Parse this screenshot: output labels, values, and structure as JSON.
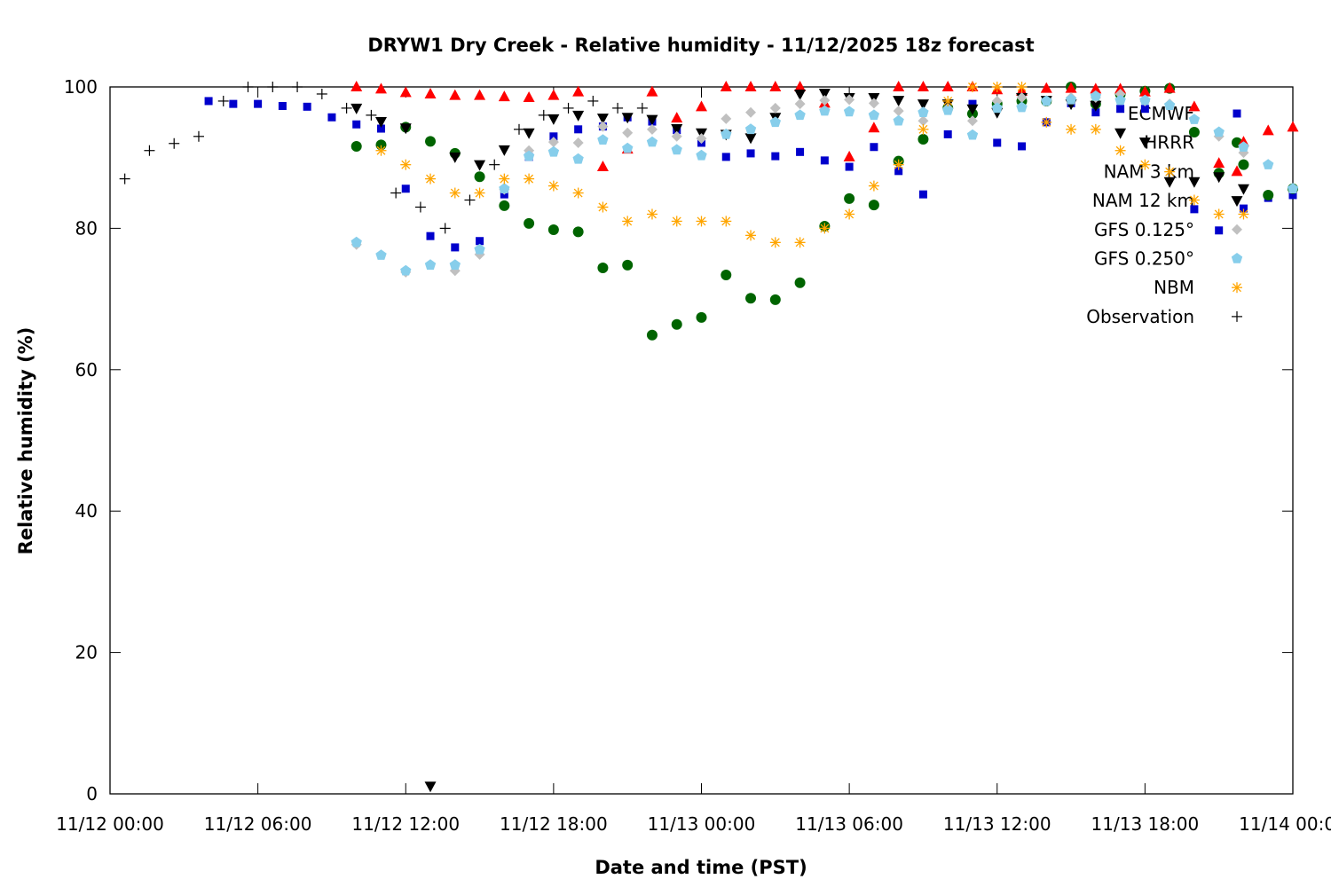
{
  "chart_data": {
    "type": "scatter",
    "title": "DRYW1 Dry Creek - Relative humidity - 11/12/2025 18z forecast",
    "xlabel": "Date and time (PST)",
    "ylabel": "Relative humidity (%)",
    "x_unit": "hours since 11/12 00:00 PST",
    "xlim": [
      0,
      48
    ],
    "ylim": [
      0,
      100
    ],
    "x_ticks": [
      {
        "x": 0,
        "label": "11/12 00:00"
      },
      {
        "x": 6,
        "label": "11/12 06:00"
      },
      {
        "x": 12,
        "label": "11/12 12:00"
      },
      {
        "x": 18,
        "label": "11/12 18:00"
      },
      {
        "x": 24,
        "label": "11/13 00:00"
      },
      {
        "x": 30,
        "label": "11/13 06:00"
      },
      {
        "x": 36,
        "label": "11/13 12:00"
      },
      {
        "x": 42,
        "label": "11/13 18:00"
      },
      {
        "x": 48,
        "label": "11/14 00:00"
      }
    ],
    "y_ticks": [
      {
        "y": 0,
        "label": "0"
      },
      {
        "y": 20,
        "label": "20"
      },
      {
        "y": 40,
        "label": "40"
      },
      {
        "y": 60,
        "label": "60"
      },
      {
        "y": 80,
        "label": "80"
      },
      {
        "y": 100,
        "label": "100"
      }
    ],
    "grid": false,
    "legend_position": "top-right",
    "series": [
      {
        "name": "ECMWF",
        "marker": "square",
        "color": "#0000cc",
        "points": [
          [
            4,
            98
          ],
          [
            5,
            97.6
          ],
          [
            6,
            97.6
          ],
          [
            7,
            97.3
          ],
          [
            8,
            97.2
          ],
          [
            9,
            95.7
          ],
          [
            10,
            94.7
          ],
          [
            11,
            94.1
          ],
          [
            12,
            85.6
          ],
          [
            13,
            78.9
          ],
          [
            14,
            77.3
          ],
          [
            15,
            78.2
          ],
          [
            16,
            84.8
          ],
          [
            17,
            90.1
          ],
          [
            18,
            93
          ],
          [
            19,
            94
          ],
          [
            20,
            94.4
          ],
          [
            21,
            95.7
          ],
          [
            22,
            95.1
          ],
          [
            23,
            93.9
          ],
          [
            24,
            92.1
          ],
          [
            25,
            90.1
          ],
          [
            26,
            90.6
          ],
          [
            27,
            90.2
          ],
          [
            28,
            90.8
          ],
          [
            29,
            89.6
          ],
          [
            30,
            88.7
          ],
          [
            31,
            91.5
          ],
          [
            32,
            88.1
          ],
          [
            33,
            84.8
          ],
          [
            34,
            93.3
          ],
          [
            35,
            97.6
          ],
          [
            36,
            92.1
          ],
          [
            37,
            91.6
          ],
          [
            38,
            95
          ],
          [
            39,
            97.7
          ],
          [
            40,
            96.4
          ],
          [
            41,
            96.9
          ],
          [
            42,
            96.9
          ],
          [
            44,
            82.7
          ],
          [
            45,
            79.7
          ],
          [
            46,
            82.8
          ],
          [
            47,
            84.3
          ],
          [
            48,
            84.7
          ]
        ]
      },
      {
        "name": "HRRR",
        "marker": "circle",
        "color": "#006400",
        "points": [
          [
            10,
            91.6
          ],
          [
            11,
            91.8
          ],
          [
            12,
            94.3
          ],
          [
            13,
            92.3
          ],
          [
            14,
            90.6
          ],
          [
            15,
            87.3
          ],
          [
            16,
            83.2
          ],
          [
            17,
            80.7
          ],
          [
            18,
            79.8
          ],
          [
            19,
            79.5
          ],
          [
            20,
            74.4
          ],
          [
            21,
            74.8
          ],
          [
            22,
            64.9
          ],
          [
            23,
            66.4
          ],
          [
            24,
            67.4
          ],
          [
            25,
            73.4
          ],
          [
            26,
            70.1
          ],
          [
            27,
            69.9
          ],
          [
            28,
            72.3
          ],
          [
            29,
            80.3
          ],
          [
            30,
            84.2
          ],
          [
            31,
            83.3
          ],
          [
            32,
            89.5
          ],
          [
            33,
            92.6
          ],
          [
            34,
            97
          ],
          [
            35,
            96.2
          ],
          [
            36,
            97.6
          ],
          [
            37,
            98
          ],
          [
            38,
            98
          ],
          [
            39,
            100
          ],
          [
            40,
            97.6
          ],
          [
            41,
            99
          ],
          [
            42,
            99.4
          ],
          [
            43,
            99.8
          ],
          [
            44,
            93.6
          ],
          [
            45,
            87.8
          ],
          [
            46,
            89
          ],
          [
            47,
            84.7
          ],
          [
            48,
            85.6
          ]
        ]
      },
      {
        "name": "NAM 3 km",
        "marker": "triangle-up",
        "color": "#ff0000",
        "points": [
          [
            10,
            100
          ],
          [
            11,
            99.7
          ],
          [
            12,
            99.2
          ],
          [
            13,
            99
          ],
          [
            14,
            98.8
          ],
          [
            15,
            98.8
          ],
          [
            16,
            98.6
          ],
          [
            17,
            98.5
          ],
          [
            18,
            98.8
          ],
          [
            19,
            99.3
          ],
          [
            20,
            88.7
          ],
          [
            21,
            91.2
          ],
          [
            22,
            99.3
          ],
          [
            23,
            95.6
          ],
          [
            24,
            97.2
          ],
          [
            25,
            100
          ],
          [
            26,
            100
          ],
          [
            27,
            100
          ],
          [
            28,
            100
          ],
          [
            29,
            97.7
          ],
          [
            30,
            90.1
          ],
          [
            31,
            94.2
          ],
          [
            32,
            100
          ],
          [
            33,
            100
          ],
          [
            34,
            100
          ],
          [
            35,
            100
          ],
          [
            36,
            99.6
          ],
          [
            37,
            99.4
          ],
          [
            38,
            99.8
          ],
          [
            39,
            99.8
          ],
          [
            40,
            99.7
          ],
          [
            41,
            99.7
          ],
          [
            42,
            99.3
          ],
          [
            43,
            99.8
          ],
          [
            44,
            97.2
          ],
          [
            45,
            89.2
          ],
          [
            46,
            92.2
          ],
          [
            47,
            93.8
          ],
          [
            48,
            94.3
          ]
        ]
      },
      {
        "name": "NAM 12 km",
        "marker": "triangle-down",
        "color": "#000000",
        "points": [
          [
            10,
            97
          ],
          [
            11,
            95.1
          ],
          [
            12,
            94.2
          ],
          [
            13,
            1.1
          ],
          [
            14,
            90.1
          ],
          [
            15,
            89
          ],
          [
            16,
            91.1
          ],
          [
            17,
            93.5
          ],
          [
            18,
            95.5
          ],
          [
            19,
            96
          ],
          [
            20,
            95.6
          ],
          [
            21,
            95.7
          ],
          [
            22,
            95.4
          ],
          [
            23,
            94.1
          ],
          [
            24,
            93.5
          ],
          [
            25,
            93.3
          ],
          [
            26,
            92.8
          ],
          [
            27,
            95.7
          ],
          [
            28,
            99
          ],
          [
            29,
            99.1
          ],
          [
            30,
            98.5
          ],
          [
            31,
            98.5
          ],
          [
            32,
            98.1
          ],
          [
            33,
            97.6
          ],
          [
            34,
            97.6
          ],
          [
            35,
            96.9
          ],
          [
            36,
            96.4
          ],
          [
            37,
            98.5
          ],
          [
            38,
            98.1
          ],
          [
            39,
            97.6
          ],
          [
            40,
            97.4
          ],
          [
            41,
            93.5
          ],
          [
            42,
            92.2
          ],
          [
            43,
            86.6
          ],
          [
            44,
            86.6
          ],
          [
            45,
            87.3
          ],
          [
            46,
            85.6
          ]
        ]
      },
      {
        "name": "GFS 0.125°",
        "marker": "diamond",
        "color": "#c0c0c0",
        "points": [
          [
            10,
            77.7
          ],
          [
            12,
            73.8
          ],
          [
            14,
            74
          ],
          [
            15,
            76.3
          ],
          [
            16,
            85.5
          ],
          [
            17,
            91
          ],
          [
            18,
            92.2
          ],
          [
            19,
            92.1
          ],
          [
            20,
            94.4
          ],
          [
            21,
            93.5
          ],
          [
            22,
            94
          ],
          [
            23,
            93
          ],
          [
            24,
            92.7
          ],
          [
            25,
            95.5
          ],
          [
            26,
            96.4
          ],
          [
            27,
            97
          ],
          [
            28,
            97.6
          ],
          [
            29,
            98.1
          ],
          [
            30,
            98.2
          ],
          [
            31,
            97.7
          ],
          [
            32,
            96.6
          ],
          [
            33,
            95.2
          ],
          [
            34,
            97
          ],
          [
            35,
            95.2
          ],
          [
            36,
            98
          ],
          [
            37,
            98.5
          ],
          [
            38,
            98
          ],
          [
            39,
            98.5
          ],
          [
            40,
            98.5
          ],
          [
            41,
            99
          ],
          [
            42,
            98
          ],
          [
            43,
            97.6
          ],
          [
            45,
            93
          ],
          [
            46,
            90.7
          ]
        ]
      },
      {
        "name": "GFS 0.250°",
        "marker": "pentagon",
        "color": "#87ceeb",
        "points": [
          [
            10,
            78
          ],
          [
            11,
            76.2
          ],
          [
            12,
            74
          ],
          [
            13,
            74.8
          ],
          [
            14,
            74.8
          ],
          [
            15,
            77
          ],
          [
            16,
            85.6
          ],
          [
            17,
            90.2
          ],
          [
            18,
            90.8
          ],
          [
            19,
            89.8
          ],
          [
            20,
            92.5
          ],
          [
            21,
            91.3
          ],
          [
            22,
            92.2
          ],
          [
            23,
            91.1
          ],
          [
            24,
            90.3
          ],
          [
            25,
            93.3
          ],
          [
            26,
            94
          ],
          [
            27,
            95
          ],
          [
            28,
            96
          ],
          [
            29,
            96.6
          ],
          [
            30,
            96.5
          ],
          [
            31,
            96
          ],
          [
            32,
            95.2
          ],
          [
            33,
            96.4
          ],
          [
            34,
            96.7
          ],
          [
            35,
            93.2
          ],
          [
            36,
            97
          ],
          [
            37,
            97.1
          ],
          [
            38,
            98
          ],
          [
            39,
            98.2
          ],
          [
            40,
            98.7
          ],
          [
            41,
            98.1
          ],
          [
            42,
            98.1
          ],
          [
            43,
            97.4
          ],
          [
            44,
            95.4
          ],
          [
            45,
            93.6
          ],
          [
            46,
            91.5
          ],
          [
            47,
            89
          ],
          [
            48,
            85.6
          ]
        ]
      },
      {
        "name": "NBM",
        "marker": "star",
        "color": "#ffa500",
        "points": [
          [
            11,
            91
          ],
          [
            12,
            89
          ],
          [
            13,
            87
          ],
          [
            14,
            85
          ],
          [
            15,
            85
          ],
          [
            16,
            87
          ],
          [
            17,
            87
          ],
          [
            18,
            86
          ],
          [
            19,
            85
          ],
          [
            20,
            83
          ],
          [
            21,
            81
          ],
          [
            22,
            82
          ],
          [
            23,
            81
          ],
          [
            24,
            81
          ],
          [
            25,
            81
          ],
          [
            26,
            79
          ],
          [
            27,
            78
          ],
          [
            28,
            78
          ],
          [
            29,
            80
          ],
          [
            30,
            82
          ],
          [
            31,
            86
          ],
          [
            32,
            89
          ],
          [
            33,
            94
          ],
          [
            34,
            98
          ],
          [
            35,
            100
          ],
          [
            36,
            100
          ],
          [
            37,
            100
          ],
          [
            38,
            95
          ],
          [
            39,
            94
          ],
          [
            40,
            94
          ],
          [
            41,
            91
          ],
          [
            42,
            89
          ],
          [
            43,
            88
          ],
          [
            44,
            84
          ],
          [
            45,
            82
          ],
          [
            46,
            82
          ]
        ]
      },
      {
        "name": "Observation",
        "marker": "plus",
        "color": "#000000",
        "points": [
          [
            0.6,
            87
          ],
          [
            1.6,
            91
          ],
          [
            2.6,
            92
          ],
          [
            3.6,
            93
          ],
          [
            4.6,
            98
          ],
          [
            5.6,
            100
          ],
          [
            6.6,
            100
          ],
          [
            7.6,
            100
          ],
          [
            8.6,
            99
          ],
          [
            9.6,
            97
          ],
          [
            10.6,
            96
          ],
          [
            11.6,
            85
          ],
          [
            12.6,
            83
          ],
          [
            13.6,
            80
          ],
          [
            14.6,
            84
          ],
          [
            15.6,
            89
          ],
          [
            16.6,
            94
          ],
          [
            17.6,
            96
          ],
          [
            18.6,
            97
          ],
          [
            19.6,
            98
          ],
          [
            20.6,
            97
          ],
          [
            21.6,
            97
          ]
        ]
      }
    ]
  }
}
